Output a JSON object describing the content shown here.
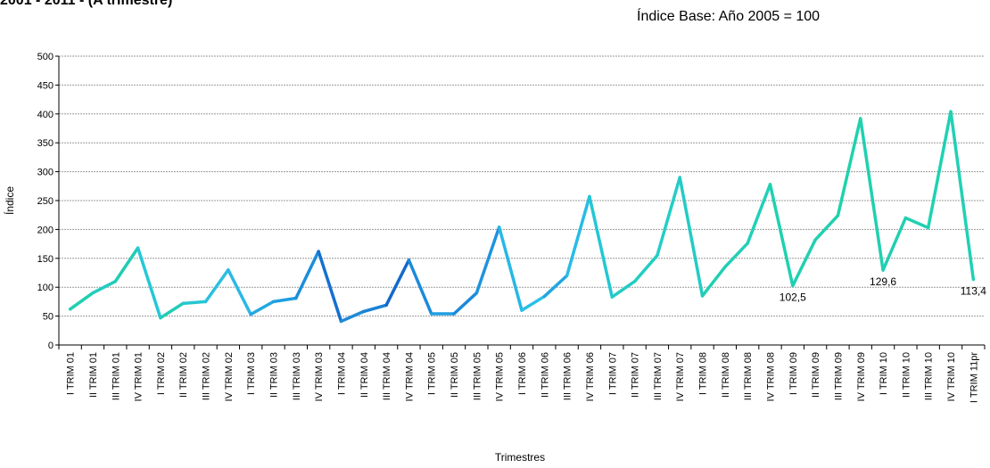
{
  "header": {
    "partial_title": "2001 - 2011 - (A trimestre)",
    "base_note": "Índice Base: Año 2005 = 100"
  },
  "chart_data": {
    "type": "line",
    "title": "",
    "xlabel": "Trimestres",
    "ylabel": "Índice",
    "ylim": [
      0,
      500
    ],
    "yticks": [
      0,
      50,
      100,
      150,
      200,
      250,
      300,
      350,
      400,
      450,
      500
    ],
    "grid": true,
    "legend": "none",
    "categories": [
      "I TRIM 01",
      "II TRIM 01",
      "III TRIM 01",
      "IV TRIM 01",
      "I TRIM 02",
      "II TRIM 02",
      "III TRIM 02",
      "IV TRIM 02",
      "I TRIM 03",
      "II TRIM 03",
      "III TRIM 03",
      "IV TRIM 03",
      "I TRIM 04",
      "II TRIM 04",
      "III TRIM 04",
      "IV TRIM 04",
      "I TRIM 05",
      "II TRIM 05",
      "III TRIM 05",
      "IV TRIM 05",
      "I TRIM 06",
      "II TRIM 06",
      "III TRIM 06",
      "IV TRIM 06",
      "I TRIM 07",
      "II TRIM 07",
      "III TRIM 07",
      "IV TRIM 07",
      "I TRIM 08",
      "II TRIM 08",
      "III TRIM 08",
      "IV TRIM 08",
      "I TRIM 09",
      "II TRIM 09",
      "III TRIM 09",
      "IV TRIM 09",
      "I TRIM 10",
      "II TRIM 10",
      "III TRIM 10",
      "IV TRIM 10",
      "I TRIM 11pr"
    ],
    "values": [
      62,
      90,
      110,
      168,
      47,
      72,
      75,
      130,
      53,
      75,
      81,
      162,
      41,
      58,
      69,
      147,
      54,
      54,
      90,
      204,
      60,
      84,
      120,
      257,
      83,
      110,
      155,
      290,
      85,
      135,
      176,
      278,
      102.5,
      182,
      224,
      392,
      129.6,
      220,
      203,
      404,
      113.4
    ],
    "segment_colors": [
      "#1ecfb0",
      "#22ccc0",
      "#20cbb4",
      "#24c8d8",
      "#22cbb8",
      "#26c6d0",
      "#2ac0e0",
      "#2ab8e6",
      "#24a8e2",
      "#209fe0",
      "#1a8edb",
      "#1670d0",
      "#1e8ad8",
      "#1a82d6",
      "#1269cc",
      "#1a8ada",
      "#209ee0",
      "#1a8ada",
      "#1e94de",
      "#26b8e6",
      "#2ac0e8",
      "#20a6e2",
      "#26bce6",
      "#22c8d4",
      "#24ccc4",
      "#22cec0",
      "#22cec6",
      "#22ccc4",
      "#20cfb4",
      "#22cfb8",
      "#22cfba",
      "#1ed2b0",
      "#22cfb2",
      "#20d0ae",
      "#1ed2ac",
      "#20d0b0",
      "#22cfb2",
      "#20d0b2",
      "#1ed2b2",
      "#22d0b4"
    ],
    "data_labels": [
      {
        "index": 32,
        "text": "102,5"
      },
      {
        "index": 36,
        "text": "129,6"
      },
      {
        "index": 40,
        "text": "113,4"
      }
    ]
  }
}
